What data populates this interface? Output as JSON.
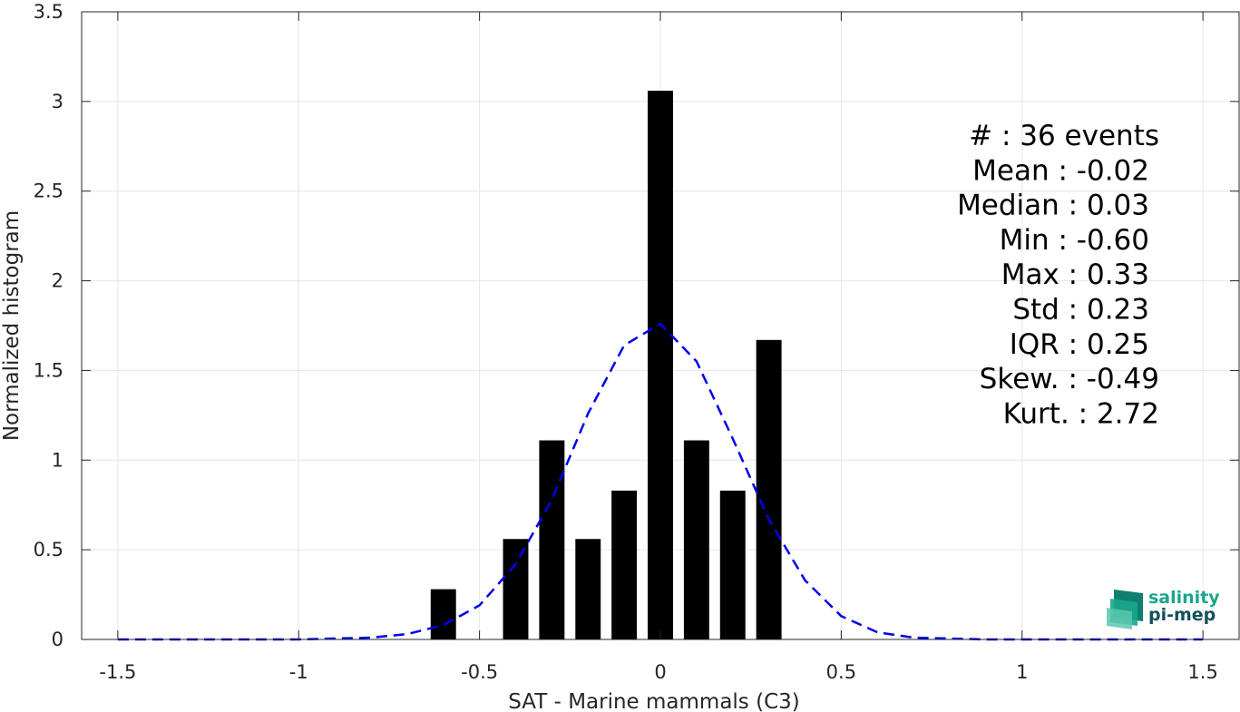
{
  "chart_data": {
    "type": "bar",
    "xlabel": "SAT - Marine mammals (C3)",
    "ylabel": "Normalized histogram",
    "xlim": [
      -1.6,
      1.6
    ],
    "ylim": [
      0,
      3.5
    ],
    "xticks": [
      -1.5,
      -1,
      -0.5,
      0,
      0.5,
      1,
      1.5
    ],
    "xtick_labels": [
      "-1.5",
      "-1",
      "-0.5",
      "0",
      "0.5",
      "1",
      "1.5"
    ],
    "yticks": [
      0,
      0.5,
      1,
      1.5,
      2,
      2.5,
      3,
      3.5
    ],
    "ytick_labels": [
      "0",
      "0.5",
      "1",
      "1.5",
      "2",
      "2.5",
      "3",
      "3.5"
    ],
    "grid": true,
    "bar_width": 0.07,
    "bars": {
      "x": [
        -0.6,
        -0.4,
        -0.3,
        -0.2,
        -0.1,
        0.0,
        0.1,
        0.2,
        0.3
      ],
      "values": [
        0.28,
        0.56,
        1.11,
        0.56,
        0.83,
        3.06,
        1.11,
        0.83,
        1.67
      ],
      "color": "#000000"
    },
    "fit_curve": {
      "style": "dashed",
      "color": "#0000ee",
      "x": [
        -1.5,
        -1.4,
        -1.3,
        -1.2,
        -1.1,
        -1.0,
        -0.9,
        -0.8,
        -0.7,
        -0.6,
        -0.5,
        -0.4,
        -0.3,
        -0.2,
        -0.1,
        0.0,
        0.1,
        0.2,
        0.3,
        0.4,
        0.5,
        0.6,
        0.7,
        0.8,
        0.9,
        1.0,
        1.1,
        1.2,
        1.3,
        1.4,
        1.5
      ],
      "y": [
        0,
        0,
        0,
        0,
        0,
        0,
        0.005,
        0.01,
        0.03,
        0.08,
        0.19,
        0.42,
        0.78,
        1.26,
        1.64,
        1.76,
        1.55,
        1.12,
        0.67,
        0.33,
        0.13,
        0.04,
        0.01,
        0.005,
        0,
        0,
        0,
        0,
        0,
        0,
        0
      ]
    },
    "annotations": [
      "#  : 36 events",
      "Mean : -0.02",
      "Median : 0.03",
      "Min : -0.60",
      "Max : 0.33",
      "Std : 0.23",
      "IQR : 0.25",
      "Skew. : -0.49",
      "Kurt. : 2.72"
    ]
  },
  "logo": {
    "line1": "salinity",
    "line2": "pi-mep"
  },
  "colors": {
    "axis": "#262626",
    "grid": "#e6e6e6",
    "logo_teal": "#1aa68a",
    "logo_dark": "#14505a"
  }
}
